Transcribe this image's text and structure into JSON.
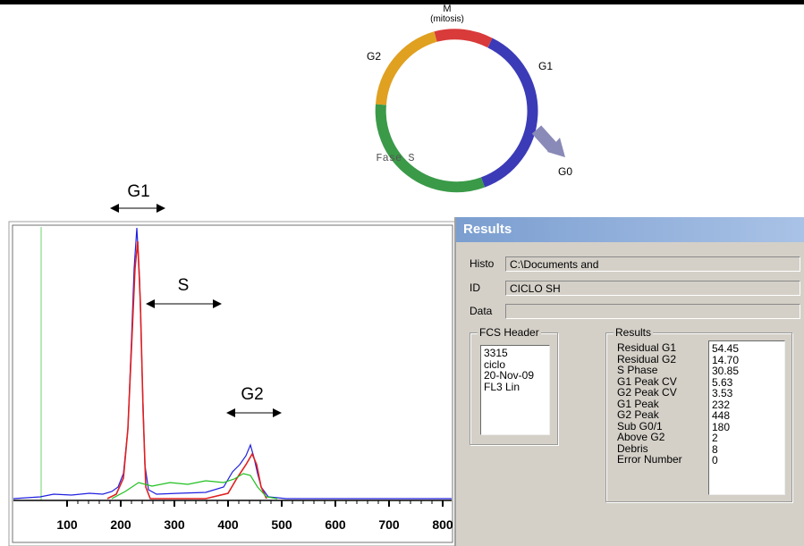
{
  "cycle_diagram": {
    "labels": {
      "m": "M",
      "mitosis": "(mitosis)",
      "g1": "G1",
      "g2": "G2",
      "s": "Fase S",
      "g0": "G0"
    }
  },
  "annotations": [
    "G1",
    "S",
    "G2"
  ],
  "histogram": {
    "x_ticks": [
      100,
      200,
      300,
      400,
      500,
      600,
      700,
      800
    ]
  },
  "results_window": {
    "title": "Results",
    "fields": [
      {
        "label": "Histo",
        "value": "C:\\Documents and"
      },
      {
        "label": "ID",
        "value": "CICLO SH"
      },
      {
        "label": "Data"
      }
    ],
    "fcs_header": {
      "title": "FCS Header",
      "lines": [
        "3315",
        "ciclo",
        "20-Nov-09",
        "FL3 Lin"
      ]
    },
    "results": {
      "title": "Results",
      "rows": [
        [
          "Residual G1",
          "54.45"
        ],
        [
          "Residual G2",
          "14.70"
        ],
        [
          "S Phase",
          "30.85"
        ],
        [
          "G1 Peak CV",
          "5.63"
        ],
        [
          "G2 Peak CV",
          "3.53"
        ],
        [
          "G1 Peak",
          "232"
        ],
        [
          "G2 Peak",
          "448"
        ],
        [
          "Sub G0/1",
          "180"
        ],
        [
          "Above G2",
          "2"
        ],
        [
          "Debris",
          "8"
        ],
        [
          "Error Number",
          "0"
        ]
      ]
    }
  }
}
